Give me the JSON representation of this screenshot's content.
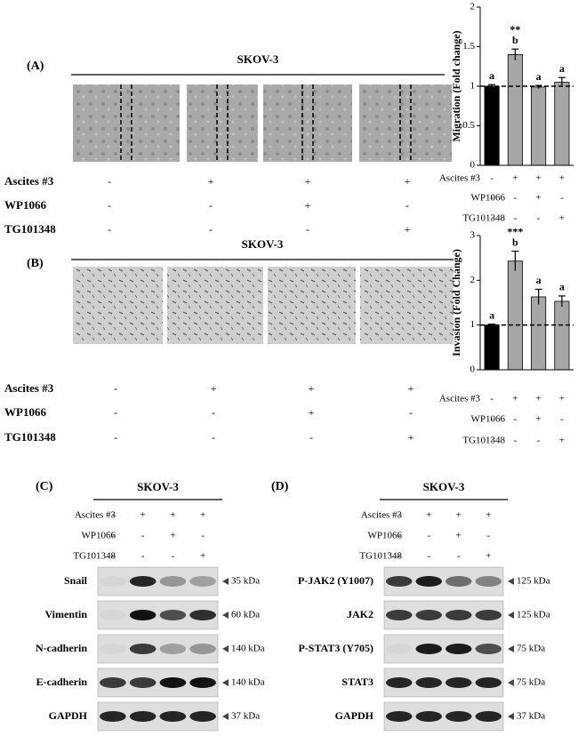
{
  "panel_a": {
    "label": "(A)",
    "title": "SKOV-3",
    "treatments": [
      {
        "name": "Ascites #3",
        "marks": [
          "-",
          "+",
          "+",
          "+"
        ]
      },
      {
        "name": "WP1066",
        "marks": [
          "-",
          "-",
          "+",
          "-"
        ]
      },
      {
        "name": "TG101348",
        "marks": [
          "-",
          "-",
          "-",
          "+"
        ]
      }
    ]
  },
  "panel_b": {
    "label": "(B)",
    "title": "SKOV-3",
    "treatments": [
      {
        "name": "Ascites #3",
        "marks": [
          "-",
          "+",
          "+",
          "+"
        ]
      },
      {
        "name": "WP1066",
        "marks": [
          "-",
          "-",
          "+",
          "-"
        ]
      },
      {
        "name": "TG101348",
        "marks": [
          "-",
          "-",
          "-",
          "+"
        ]
      }
    ]
  },
  "chart_data": [
    {
      "type": "bar",
      "ylabel": "Migration (Fold change)",
      "categories": [
        null,
        null,
        null,
        null
      ],
      "values": [
        1.0,
        1.4,
        0.99,
        1.05
      ],
      "errors": [
        0.02,
        0.07,
        0.02,
        0.06
      ],
      "colors": [
        "#000000",
        "#a6a6a6",
        "#a6a6a6",
        "#a6a6a6"
      ],
      "letters": [
        "a",
        "b",
        "a",
        "a"
      ],
      "significance": [
        null,
        "**",
        null,
        null
      ],
      "reference_line": 1,
      "ylim": [
        0,
        2
      ],
      "yticks": [
        0,
        0.5,
        1,
        1.5,
        2
      ],
      "treatments": [
        {
          "name": "Ascites #3",
          "marks": [
            "-",
            "+",
            "+",
            "+"
          ]
        },
        {
          "name": "WP1066",
          "marks": [
            "-",
            "-",
            "+",
            "-"
          ]
        },
        {
          "name": "TG101348",
          "marks": [
            "-",
            "-",
            "-",
            "+"
          ]
        }
      ]
    },
    {
      "type": "bar",
      "ylabel": "Invasion (Fold Change)",
      "categories": [
        null,
        null,
        null,
        null
      ],
      "values": [
        1.0,
        2.43,
        1.63,
        1.53
      ],
      "errors": [
        0.02,
        0.22,
        0.17,
        0.12
      ],
      "colors": [
        "#000000",
        "#a6a6a6",
        "#a6a6a6",
        "#a6a6a6"
      ],
      "letters": [
        "a",
        "b",
        "a",
        "a"
      ],
      "significance": [
        null,
        "***",
        null,
        null
      ],
      "reference_line": 1,
      "ylim": [
        0,
        3
      ],
      "yticks": [
        0,
        1,
        2,
        3
      ],
      "treatments": [
        {
          "name": "Ascites #3",
          "marks": [
            "-",
            "+",
            "+",
            "+"
          ]
        },
        {
          "name": "WP1066",
          "marks": [
            "-",
            "-",
            "+",
            "-"
          ]
        },
        {
          "name": "TG101348",
          "marks": [
            "-",
            "-",
            "-",
            "+"
          ]
        }
      ]
    }
  ],
  "panel_c": {
    "label": "(C)",
    "title": "SKOV-3",
    "treatments": [
      {
        "name": "Ascites #3",
        "marks": [
          "-",
          "+",
          "+",
          "+"
        ]
      },
      {
        "name": "WP1066",
        "marks": [
          "-",
          "-",
          "+",
          "-"
        ]
      },
      {
        "name": "TG101348",
        "marks": [
          "-",
          "-",
          "-",
          "+"
        ]
      }
    ],
    "blots": [
      {
        "name": "Snail",
        "size": "35 kDa"
      },
      {
        "name": "Vimentin",
        "size": "60 kDa"
      },
      {
        "name": "N-cadherin",
        "size": "140 kDa"
      },
      {
        "name": "E-cadherin",
        "size": "140 kDa"
      },
      {
        "name": "GAPDH",
        "size": "37 kDa"
      }
    ]
  },
  "panel_d": {
    "label": "(D)",
    "title": "SKOV-3",
    "treatments": [
      {
        "name": "Ascites #3",
        "marks": [
          "-",
          "+",
          "+",
          "+"
        ]
      },
      {
        "name": "WP1066",
        "marks": [
          "-",
          "-",
          "+",
          "-"
        ]
      },
      {
        "name": "TG101348",
        "marks": [
          "-",
          "-",
          "-",
          "+"
        ]
      }
    ],
    "blots": [
      {
        "name": "P-JAK2 (Y1007)",
        "size": "125 kDa"
      },
      {
        "name": "JAK2",
        "size": "125 kDa"
      },
      {
        "name": "P-STAT3 (Y705)",
        "size": "75 kDa"
      },
      {
        "name": "STAT3",
        "size": "75 kDa"
      },
      {
        "name": "GAPDH",
        "size": "37 kDa"
      }
    ]
  }
}
